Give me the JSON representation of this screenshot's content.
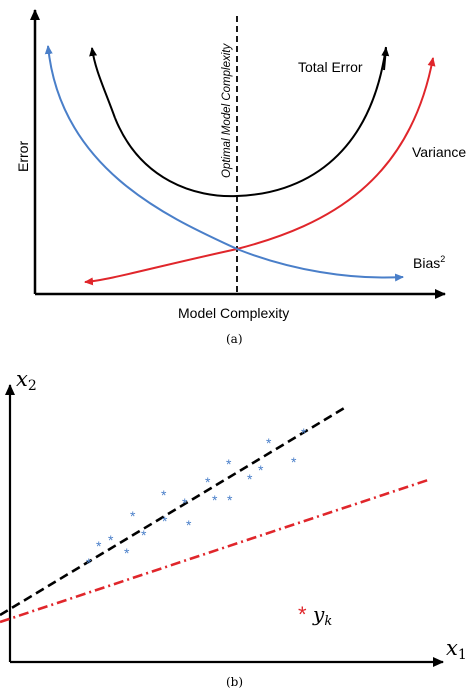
{
  "panel_a": {
    "axes": {
      "x_label": "Model Complexity",
      "y_label": "Error"
    },
    "optimal_line_label": "Optimal Model Complexity",
    "curves": {
      "total_error": {
        "label": "Total Error",
        "color": "#000000"
      },
      "variance": {
        "label": "Variance",
        "color": "#e0262b"
      },
      "bias": {
        "label": "Bias",
        "superscript": "2",
        "color": "#4a7fc9"
      }
    },
    "caption": "(a)"
  },
  "panel_b": {
    "axes": {
      "x_label": "x",
      "x_subscript": "1",
      "y_label": "x",
      "y_subscript": "2"
    },
    "point_label": {
      "main": "y",
      "subscript": "k",
      "marker": "*",
      "color": "#e0262b"
    },
    "scatter_marker": "*",
    "scatter_color": "#4a7fc9",
    "line_colors": {
      "fit": "#000000",
      "alternative": "#e0262b"
    },
    "caption": "(b)"
  }
}
